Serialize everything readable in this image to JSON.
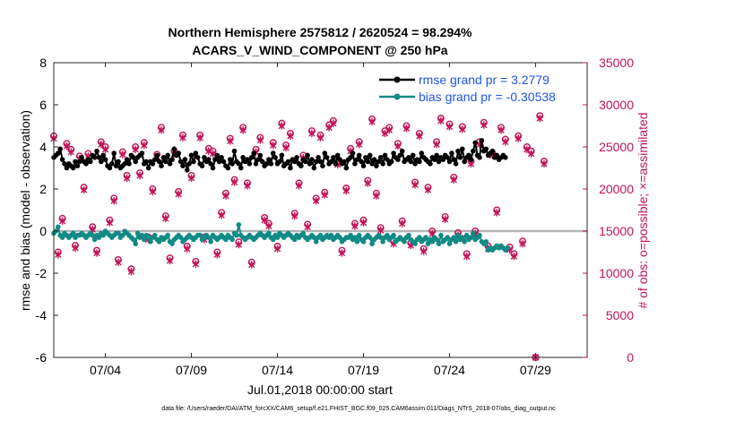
{
  "chart_data": {
    "type": "line",
    "title": "Northern Hemisphere 2575812 / 2620524 = 98.294%",
    "subtitle": "ACARS_V_WIND_COMPONENT @ 250 hPa",
    "xlabel": "Jul.01,2018 00:00:00 start",
    "ylabel": "rmse and bias (model - observation)",
    "y2label": "# of obs: o=possible; ×=assimilated",
    "footnote": "data file: /Users/raeder/DAI/ATM_forcXX/CAM6_setup/f.e21.FHIST_BGC.f09_025.CAM6assim.011/Diags_NTrS_2018-07/obs_diag_output.nc",
    "xlim": [
      1,
      32
    ],
    "ylim": [
      -6,
      8
    ],
    "y2lim": [
      0,
      35000
    ],
    "xticks": [
      {
        "x": 4,
        "label": "07/04"
      },
      {
        "x": 9,
        "label": "07/09"
      },
      {
        "x": 14,
        "label": "07/14"
      },
      {
        "x": 19,
        "label": "07/19"
      },
      {
        "x": 24,
        "label": "07/24"
      },
      {
        "x": 29,
        "label": "07/29"
      }
    ],
    "yticks": [
      -6,
      -4,
      -2,
      0,
      2,
      4,
      6,
      8
    ],
    "y2ticks": [
      0,
      5000,
      10000,
      15000,
      20000,
      25000,
      30000,
      35000
    ],
    "series": [
      {
        "name": "rmse",
        "legend": "rmse grand pr = 3.2779",
        "color": "#000000",
        "axis": "left",
        "x_start": 1.0,
        "x_step": 0.125,
        "values": [
          3.5,
          3.6,
          3.7,
          3.9,
          3.4,
          3.2,
          3.0,
          3.2,
          3.1,
          3.0,
          3.3,
          3.1,
          3.3,
          3.5,
          3.3,
          3.2,
          3.4,
          3.3,
          3.6,
          3.5,
          3.8,
          3.5,
          3.3,
          3.6,
          3.4,
          3.1,
          3.0,
          3.2,
          3.7,
          3.1,
          3.3,
          3.0,
          3.1,
          3.2,
          3.4,
          3.2,
          3.6,
          3.5,
          3.3,
          3.5,
          3.6,
          3.7,
          3.2,
          3.3,
          3.0,
          3.3,
          3.2,
          3.4,
          3.6,
          3.3,
          3.1,
          3.5,
          3.3,
          3.6,
          3.2,
          3.4,
          3.9,
          3.6,
          3.7,
          3.3,
          3.1,
          3.4,
          2.9,
          3.2,
          3.6,
          3.3,
          3.7,
          3.5,
          3.2,
          3.1,
          3.5,
          3.3,
          3.4,
          3.2,
          3.0,
          3.4,
          3.6,
          3.3,
          3.5,
          3.3,
          3.1,
          3.0,
          3.4,
          3.2,
          3.8,
          3.3,
          3.2,
          3.0,
          3.5,
          3.3,
          3.4,
          3.2,
          3.5,
          3.7,
          3.2,
          3.4,
          3.6,
          3.3,
          3.1,
          3.2,
          3.4,
          3.2,
          3.7,
          3.5,
          3.2,
          3.3,
          3.6,
          3.1,
          3.2,
          3.3,
          3.0,
          3.4,
          3.3,
          3.5,
          3.2,
          3.1,
          3.4,
          3.3,
          3.6,
          3.2,
          3.4,
          3.0,
          3.3,
          3.5,
          3.3,
          3.1,
          3.7,
          3.5,
          3.2,
          3.3,
          3.5,
          3.2,
          3.6,
          3.4,
          3.2,
          3.3,
          3.0,
          3.4,
          3.5,
          3.7,
          3.2,
          3.4,
          3.6,
          3.3,
          3.1,
          3.5,
          3.3,
          3.6,
          3.2,
          3.4,
          3.1,
          3.3,
          3.5,
          3.2,
          3.6,
          3.4,
          3.2,
          3.3,
          3.7,
          3.5,
          3.4,
          3.6,
          3.8,
          3.3,
          3.4,
          3.5,
          3.3,
          3.6,
          3.2,
          3.4,
          3.3,
          3.7,
          3.5,
          3.4,
          3.3,
          3.2,
          3.5,
          3.4,
          3.6,
          3.3,
          3.5,
          3.4,
          3.6,
          3.5,
          3.3,
          3.7,
          3.4,
          3.2,
          3.8,
          3.5,
          3.9,
          3.3,
          3.5,
          3.6,
          3.4,
          3.8,
          4.2,
          3.6,
          3.5,
          4.3,
          3.8,
          3.9,
          3.6,
          3.7,
          3.8,
          3.5,
          3.6,
          3.4,
          3.5,
          3.6,
          3.5
        ]
      },
      {
        "name": "bias",
        "legend": "bias grand pr = -0.30538",
        "color": "#108a85",
        "axis": "left",
        "x_start": 1.0,
        "x_step": 0.125,
        "values": [
          -0.1,
          0.0,
          0.2,
          -0.2,
          -0.3,
          -0.1,
          -0.2,
          -0.3,
          -0.2,
          -0.1,
          -0.3,
          -0.2,
          -0.2,
          -0.1,
          -0.2,
          -0.3,
          -0.2,
          -0.1,
          -0.2,
          -0.4,
          -0.2,
          -0.3,
          -0.1,
          -0.2,
          0.0,
          -0.1,
          -0.2,
          -0.3,
          -0.2,
          -0.1,
          -0.1,
          -0.3,
          -0.2,
          0.0,
          -0.1,
          -0.2,
          -0.3,
          -0.4,
          -0.6,
          -0.1,
          -0.3,
          -0.2,
          -0.4,
          -0.2,
          -0.3,
          -0.5,
          -0.3,
          -0.2,
          -0.4,
          -0.5,
          -0.3,
          -0.4,
          -0.3,
          -0.2,
          -0.5,
          -0.6,
          -0.4,
          -0.3,
          -0.2,
          -0.3,
          -0.5,
          -0.4,
          -0.3,
          -0.2,
          -0.3,
          -0.4,
          -0.3,
          -0.2,
          -0.2,
          -0.4,
          -0.3,
          -0.2,
          -0.3,
          -0.5,
          -0.2,
          -0.3,
          -0.4,
          -0.3,
          -0.2,
          -0.3,
          -0.4,
          -0.2,
          -0.3,
          -0.4,
          -0.1,
          -0.2,
          0.3,
          -0.2,
          -0.3,
          -0.4,
          -0.3,
          -0.2,
          -0.3,
          -0.4,
          -0.3,
          -0.2,
          -0.1,
          -0.2,
          -0.3,
          -0.2,
          -0.1,
          -0.3,
          -0.4,
          -0.2,
          -0.3,
          -0.1,
          -0.2,
          -0.3,
          -0.2,
          -0.1,
          -0.2,
          -0.3,
          -0.4,
          -0.2,
          -0.3,
          -0.2,
          -0.1,
          -0.3,
          -0.4,
          -0.3,
          -0.2,
          -0.3,
          -0.5,
          -0.3,
          -0.2,
          -0.4,
          -0.3,
          -0.2,
          -0.3,
          -0.2,
          -0.4,
          -0.3,
          -0.2,
          -0.3,
          -0.5,
          -0.4,
          -0.3,
          -0.3,
          -0.2,
          -0.4,
          -0.3,
          -0.5,
          -0.2,
          -0.4,
          -0.5,
          -0.3,
          -0.2,
          -0.3,
          -0.6,
          -0.4,
          -0.3,
          -0.2,
          -0.3,
          -0.5,
          -0.3,
          -0.2,
          -0.4,
          -0.3,
          -0.2,
          -0.5,
          -0.4,
          -0.3,
          -0.4,
          -0.5,
          -0.3,
          -0.2,
          -0.4,
          -0.5,
          -0.6,
          -0.4,
          -0.3,
          -0.5,
          -0.4,
          -0.3,
          -0.6,
          -0.4,
          -0.5,
          -0.3,
          -0.4,
          -0.6,
          -0.2,
          -0.5,
          -0.4,
          -0.3,
          -0.6,
          -0.4,
          -0.3,
          -0.5,
          -0.2,
          -0.4,
          -0.3,
          -0.5,
          -0.2,
          -0.4,
          -0.3,
          -0.1,
          -0.4,
          -0.3,
          -0.2,
          -0.5,
          -0.6,
          -0.5,
          -0.9,
          -0.8,
          -0.9,
          -0.8,
          -0.7,
          -0.8,
          -0.7,
          -0.8,
          -0.9,
          -0.8
        ]
      },
      {
        "name": "obs_possible",
        "color": "#c0145a",
        "axis": "right",
        "x_start": 1.0,
        "x_step": 0.25,
        "values": [
          26300,
          12500,
          16500,
          25400,
          24700,
          13300,
          23900,
          20200,
          24200,
          15500,
          12700,
          25600,
          25000,
          16300,
          18900,
          11600,
          24400,
          21600,
          10500,
          25000,
          21900,
          25500,
          14300,
          20000,
          24100,
          27300,
          16800,
          11800,
          24500,
          19700,
          26400,
          13200,
          21600,
          11400,
          26400,
          14300,
          24800,
          24500,
          12500,
          17200,
          19500,
          26000,
          21100,
          13700,
          27300,
          20700,
          11300,
          24700,
          26100,
          16600,
          15900,
          25500,
          13200,
          27800,
          25200,
          26600,
          17100,
          20700,
          24000,
          15800,
          26900,
          18900,
          26400,
          19600,
          27600,
          28100,
          23200,
          12700,
          20100,
          24800,
          15900,
          25600,
          16300,
          21000,
          28300,
          19500,
          15400,
          26900,
          27300,
          13800,
          25400,
          16200,
          27500,
          13600,
          20800,
          26600,
          12900,
          20200,
          15000,
          25600,
          28400,
          16700,
          27700,
          21400,
          14800,
          27400,
          12300,
          23300,
          15000,
          25600,
          27900,
          13200,
          24300,
          17500,
          27300,
          25900,
          13100,
          12300,
          26300,
          13800,
          25000,
          24500,
          0,
          28700,
          23300
        ]
      },
      {
        "name": "obs_assimilated",
        "color": "#c0145a",
        "axis": "right",
        "x_start": 1.0,
        "x_step": 0.25,
        "values": [
          26000,
          12200,
          16200,
          25100,
          24400,
          13000,
          23600,
          19900,
          23900,
          15200,
          12400,
          25300,
          24700,
          16000,
          18600,
          11300,
          24100,
          21300,
          10200,
          24700,
          21600,
          25200,
          14000,
          19700,
          23800,
          27000,
          16500,
          11500,
          24200,
          19400,
          26100,
          12900,
          21300,
          11100,
          26100,
          14000,
          24500,
          24200,
          12200,
          16900,
          19200,
          25700,
          20800,
          13400,
          27000,
          20400,
          11000,
          24400,
          25800,
          16300,
          15600,
          25200,
          12900,
          27500,
          24900,
          26300,
          16800,
          20400,
          23700,
          15500,
          26600,
          18600,
          26100,
          19300,
          27300,
          27800,
          22900,
          12400,
          19800,
          24500,
          15600,
          25300,
          16000,
          20700,
          28000,
          19200,
          15100,
          26600,
          27000,
          13500,
          25100,
          15900,
          27200,
          13300,
          20500,
          26300,
          12600,
          19900,
          14700,
          25300,
          28100,
          16400,
          27400,
          21100,
          14500,
          27100,
          12000,
          23000,
          14700,
          25300,
          27600,
          12900,
          24000,
          17200,
          27000,
          25600,
          12800,
          12000,
          26000,
          13500,
          24700,
          24200,
          0,
          28400,
          23000
        ]
      }
    ]
  }
}
